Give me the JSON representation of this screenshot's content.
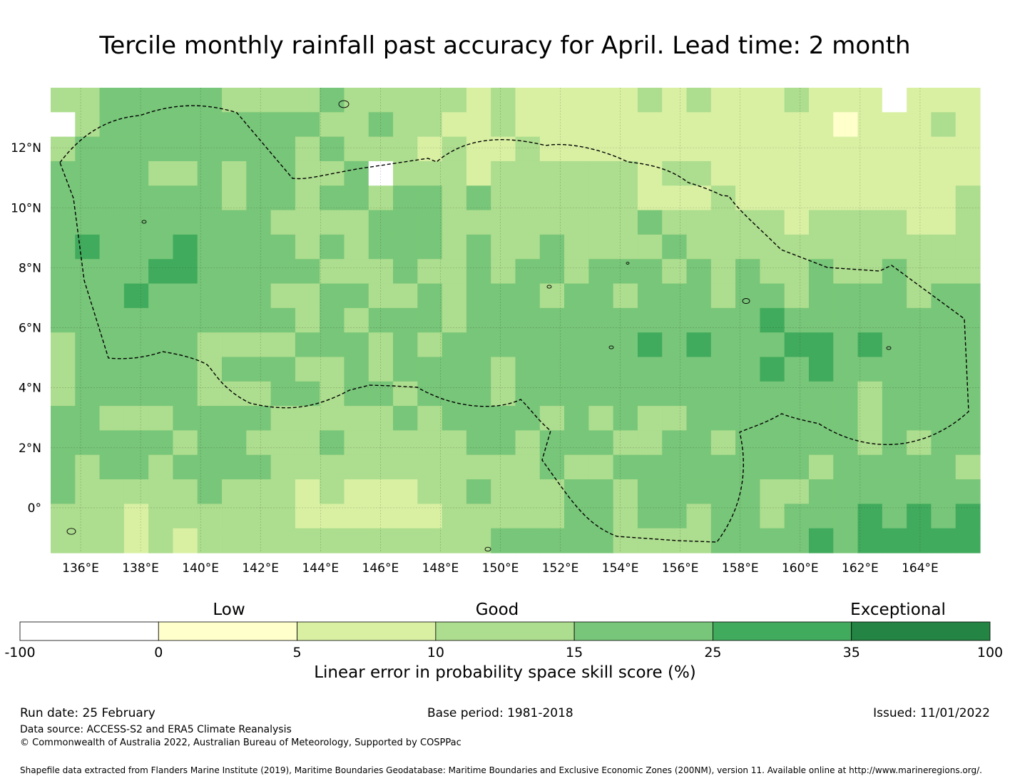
{
  "title": "Tercile monthly rainfall past accuracy for April. Lead time: 2 month",
  "map": {
    "lon_labels": [
      "136°E",
      "138°E",
      "140°E",
      "142°E",
      "144°E",
      "146°E",
      "148°E",
      "150°E",
      "152°E",
      "154°E",
      "156°E",
      "158°E",
      "160°E",
      "162°E",
      "164°E"
    ],
    "lat_labels": [
      "12°N",
      "10°N",
      "8°N",
      "6°N",
      "4°N",
      "2°N",
      "0°"
    ],
    "lon_range": [
      135,
      166
    ],
    "lat_range": [
      -1.5,
      14
    ]
  },
  "colorbar": {
    "category_labels": [
      "Low",
      "Good",
      "Exceptional"
    ],
    "tick_labels": [
      "-100",
      "0",
      "5",
      "10",
      "15",
      "25",
      "35",
      "100"
    ],
    "colors": [
      "#ffffff",
      "#ffffcc",
      "#d9f0a3",
      "#addd8e",
      "#78c679",
      "#41ab5d",
      "#238443"
    ],
    "title": "Linear error in probability space skill score (%)"
  },
  "footer": {
    "run_date": "Run date: 25 February",
    "base_period": "Base period: 1981-2018",
    "issued": "Issued: 11/01/2022",
    "data_source": "Data source: ACCESS-S2 and ERA5 Climate Reanalysis",
    "copyright": "© Commonwealth of Australia 2022, Australian Bureau of Meteorology, Supported by COSPPac",
    "shapefile": "Shapefile data extracted from Flanders Marine Institute (2019), Maritime Boundaries Geodatabase: Maritime Boundaries and Exclusive Economic Zones (200NM), version 11. Available online at http://www.marineregions.org/."
  }
}
